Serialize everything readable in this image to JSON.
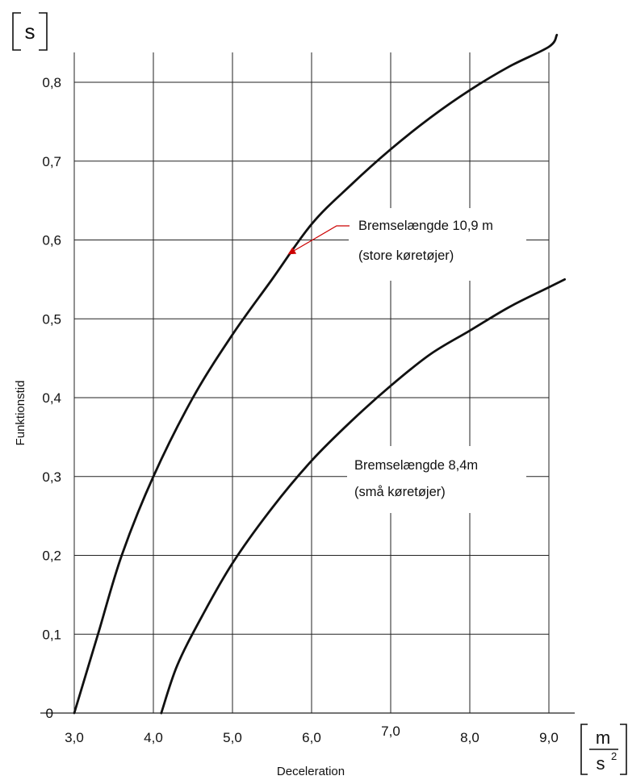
{
  "chart_data": {
    "type": "line",
    "title": "",
    "xlabel": "Deceleration",
    "ylabel": "Funktionstid",
    "y_unit": "s",
    "x_unit": {
      "numerator": "m",
      "denominator": "s",
      "exponent": "2"
    },
    "xlim": [
      3.0,
      9.0
    ],
    "ylim": [
      0,
      0.8
    ],
    "x_ticks": [
      {
        "value": 3.0,
        "label": "3,0"
      },
      {
        "value": 4.0,
        "label": "4,0"
      },
      {
        "value": 5.0,
        "label": "5,0"
      },
      {
        "value": 6.0,
        "label": "6,0"
      },
      {
        "value": 7.0,
        "label": "7,0"
      },
      {
        "value": 8.0,
        "label": "8,0"
      },
      {
        "value": 9.0,
        "label": "9,0"
      }
    ],
    "y_ticks": [
      {
        "value": 0,
        "label": "0"
      },
      {
        "value": 0.1,
        "label": "0,1"
      },
      {
        "value": 0.2,
        "label": "0,2"
      },
      {
        "value": 0.3,
        "label": "0,3"
      },
      {
        "value": 0.4,
        "label": "0,4"
      },
      {
        "value": 0.5,
        "label": "0,5"
      },
      {
        "value": 0.6,
        "label": "0,6"
      },
      {
        "value": 0.7,
        "label": "0,7"
      },
      {
        "value": 0.8,
        "label": "0,8"
      }
    ],
    "grid": true,
    "series": [
      {
        "name": "Bremselængde 10,9 m",
        "subtitle": "(store køretøjer)",
        "color": "#111111",
        "x": [
          3.0,
          3.3,
          3.6,
          4.0,
          4.5,
          5.0,
          5.5,
          6.0,
          6.5,
          7.0,
          7.5,
          8.0,
          8.5,
          9.0,
          9.1
        ],
        "y": [
          0.0,
          0.1,
          0.2,
          0.3,
          0.4,
          0.48,
          0.55,
          0.62,
          0.67,
          0.715,
          0.755,
          0.79,
          0.82,
          0.845,
          0.86
        ]
      },
      {
        "name": "Bremselængde 8,4m",
        "subtitle": "(små køretøjer)",
        "color": "#111111",
        "x": [
          4.1,
          4.3,
          4.6,
          5.0,
          5.5,
          6.0,
          6.5,
          7.0,
          7.5,
          8.0,
          8.5,
          9.0,
          9.2
        ],
        "y": [
          0.0,
          0.06,
          0.12,
          0.19,
          0.26,
          0.32,
          0.37,
          0.415,
          0.455,
          0.485,
          0.515,
          0.54,
          0.55
        ]
      }
    ],
    "annotations": [
      {
        "line1": "Bremselængde 10,9 m",
        "line2": "(store køretøjer)",
        "arrow_color": "#cc0000",
        "points_to": {
          "x": 5.7,
          "y": 0.585
        }
      },
      {
        "line1": "Bremselængde 8,4m",
        "line2": "(små køretøjer)"
      }
    ]
  }
}
